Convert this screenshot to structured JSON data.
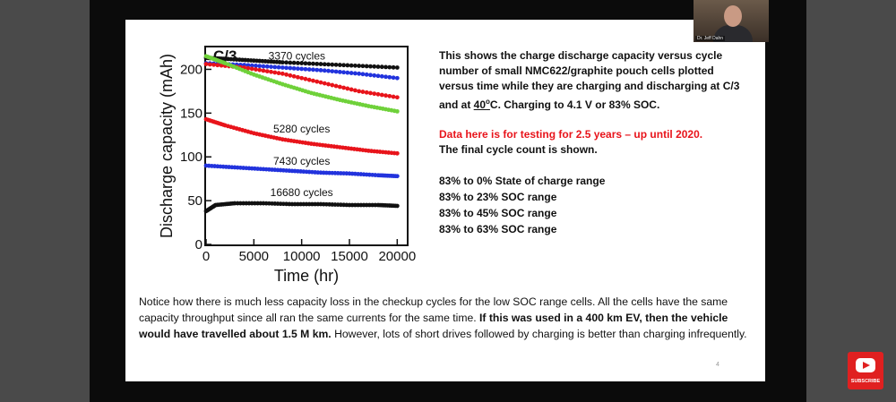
{
  "slide": {
    "description_lines": [
      "This shows the charge discharge capacity versus cycle number of small NMC622/graphite pouch cells plotted versus time while they are charging and discharging at C/3 and at ",
      "C.  Charging to 4.1 V or 83% SOC."
    ],
    "desc_temp": "40",
    "desc_deg": "o",
    "data_note_red": "Data here is for testing for 2.5 years – up until 2020.",
    "data_note_black": "The final cycle count is shown.",
    "legend": [
      {
        "text": "83% to 0% State of charge range",
        "color": "#6fd13a"
      },
      {
        "text": "83% to 23% SOC range",
        "color": "#e8141b"
      },
      {
        "text": "83% to 45% SOC range",
        "color": "#3d6fd6"
      },
      {
        "text": "83% to 63% SOC range",
        "color": "#111111"
      }
    ],
    "notice_plain_1": "Notice how there is much less capacity loss in the checkup cycles for the low SOC range cells.  All the cells have the same capacity throughput since all ran the same currents for the same time.  ",
    "notice_bold": "If this was used in a 400 km EV, then the vehicle would have travelled about 1.5 M km.",
    "notice_plain_2": "  However, lots of short drives followed by charging is better than charging infrequently.",
    "page_number": "4"
  },
  "webcam": {
    "name": "Dr. Jeff Dahn"
  },
  "subscribe": {
    "label": "SUBSCRIBE"
  },
  "chart_data": {
    "type": "scatter",
    "title": "C/3",
    "xlabel": "Time (hr)",
    "ylabel": "Discharge capacity (mAh)",
    "xlim": [
      0,
      21000
    ],
    "ylim": [
      0,
      225
    ],
    "xticks": [
      0,
      5000,
      10000,
      15000,
      20000
    ],
    "yticks": [
      0,
      50,
      100,
      150,
      200
    ],
    "series": [
      {
        "name": "3370 cycles",
        "color": "#111111",
        "x": [
          0,
          2000,
          5000,
          8000,
          12000,
          16000,
          20000
        ],
        "y": [
          213,
          212,
          210,
          208,
          206,
          204,
          202
        ],
        "label": "3370 cycles",
        "label_x": 9500,
        "label_y": 211
      },
      {
        "name": "3370 cycles (blue check)",
        "color": "#2233dd",
        "x": [
          0,
          4000,
          8000,
          12000,
          16000,
          20000
        ],
        "y": [
          207,
          205,
          202,
          199,
          195,
          190
        ],
        "label": "",
        "label_x": 0,
        "label_y": 0
      },
      {
        "name": "3370 cycles (red check)",
        "color": "#e8141b",
        "x": [
          0,
          4000,
          8000,
          12000,
          16000,
          20000
        ],
        "y": [
          206,
          202,
          195,
          185,
          175,
          168
        ],
        "label": "",
        "label_x": 0,
        "label_y": 0
      },
      {
        "name": "3370 cycles (green)",
        "color": "#6fd13a",
        "x": [
          0,
          2000,
          5000,
          8000,
          11000,
          14000,
          17000,
          20000
        ],
        "y": [
          215,
          207,
          194,
          183,
          173,
          165,
          158,
          152
        ],
        "label": "",
        "label_x": 0,
        "label_y": 0
      },
      {
        "name": "5280 cycles",
        "color": "#e8141b",
        "x": [
          0,
          2000,
          5000,
          8000,
          11000,
          14000,
          17000,
          20000
        ],
        "y": [
          143,
          136,
          127,
          120,
          115,
          111,
          107,
          104
        ],
        "label": "5280 cycles",
        "label_x": 10000,
        "label_y": 128
      },
      {
        "name": "7430 cycles",
        "color": "#2233dd",
        "x": [
          0,
          3000,
          6000,
          9000,
          12000,
          15000,
          18000,
          20000
        ],
        "y": [
          90,
          88,
          86,
          84,
          82,
          81,
          79,
          78
        ],
        "label": "7430 cycles",
        "label_x": 10000,
        "label_y": 91
      },
      {
        "name": "16680 cycles",
        "color": "#111111",
        "x": [
          0,
          1000,
          3000,
          6000,
          9000,
          12000,
          15000,
          18000,
          20000
        ],
        "y": [
          38,
          45,
          47,
          47,
          46,
          46,
          45,
          45,
          44
        ],
        "label": "16680 cycles",
        "label_x": 10000,
        "label_y": 55
      }
    ]
  }
}
